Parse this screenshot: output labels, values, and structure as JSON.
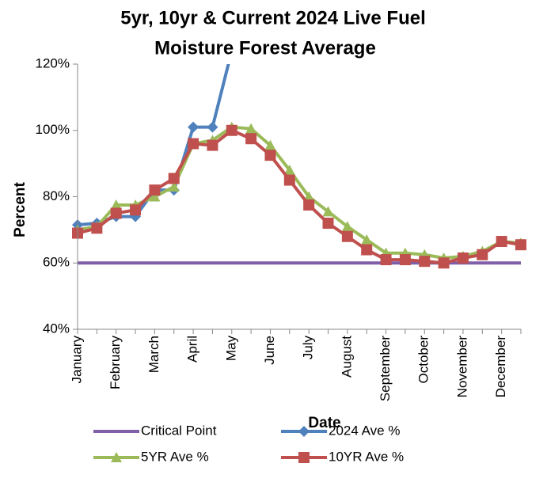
{
  "chart_data": {
    "type": "line",
    "title": [
      "5yr, 10yr & Current 2024 Live Fuel",
      "Moisture Forest Average"
    ],
    "x_label": "Date",
    "y_label": "Percent",
    "categories": [
      "January",
      null,
      "February",
      null,
      "March",
      null,
      "April",
      null,
      "May",
      null,
      "June",
      null,
      "July",
      null,
      "August",
      null,
      "September",
      null,
      "October",
      null,
      "November",
      null,
      "December",
      null
    ],
    "ylim": [
      40,
      120
    ],
    "yticks": [
      {
        "value": 40,
        "label": "40%"
      },
      {
        "value": 60,
        "label": "60%"
      },
      {
        "value": 80,
        "label": "80%"
      },
      {
        "value": 100,
        "label": "100%"
      },
      {
        "value": 120,
        "label": "120%"
      }
    ],
    "series": [
      {
        "name": "Critical Point",
        "color": "#7f5fa8",
        "marker": "none",
        "values": [
          60,
          60,
          60,
          60,
          60,
          60,
          60,
          60,
          60,
          60,
          60,
          60,
          60,
          60,
          60,
          60,
          60,
          60,
          60,
          60,
          60,
          60,
          60,
          60
        ]
      },
      {
        "name": "2024 Ave %",
        "color": "#4f81bd",
        "marker": "diamond",
        "values": [
          71.5,
          72,
          74,
          74,
          82,
          82,
          101,
          101,
          124,
          null,
          null,
          null,
          null,
          null,
          null,
          null,
          null,
          null,
          null,
          null,
          null,
          null,
          null,
          null
        ]
      },
      {
        "name": "5YR Ave %",
        "color": "#9bbb59",
        "marker": "triangle",
        "values": [
          70,
          71,
          77.5,
          77.5,
          80,
          83,
          96,
          97,
          101,
          100.5,
          95.5,
          88,
          80,
          75.5,
          71,
          67,
          63,
          63,
          62.5,
          61.5,
          62,
          63.5,
          66.5,
          66
        ]
      },
      {
        "name": "10YR Ave %",
        "color": "#c0504d",
        "marker": "square",
        "values": [
          69,
          70.5,
          75,
          76,
          82,
          85.5,
          96,
          95.5,
          100,
          97.5,
          92.5,
          85,
          77.5,
          72,
          68,
          64,
          61,
          61,
          60.5,
          60,
          61.5,
          62.5,
          66.5,
          65.5
        ]
      }
    ]
  }
}
